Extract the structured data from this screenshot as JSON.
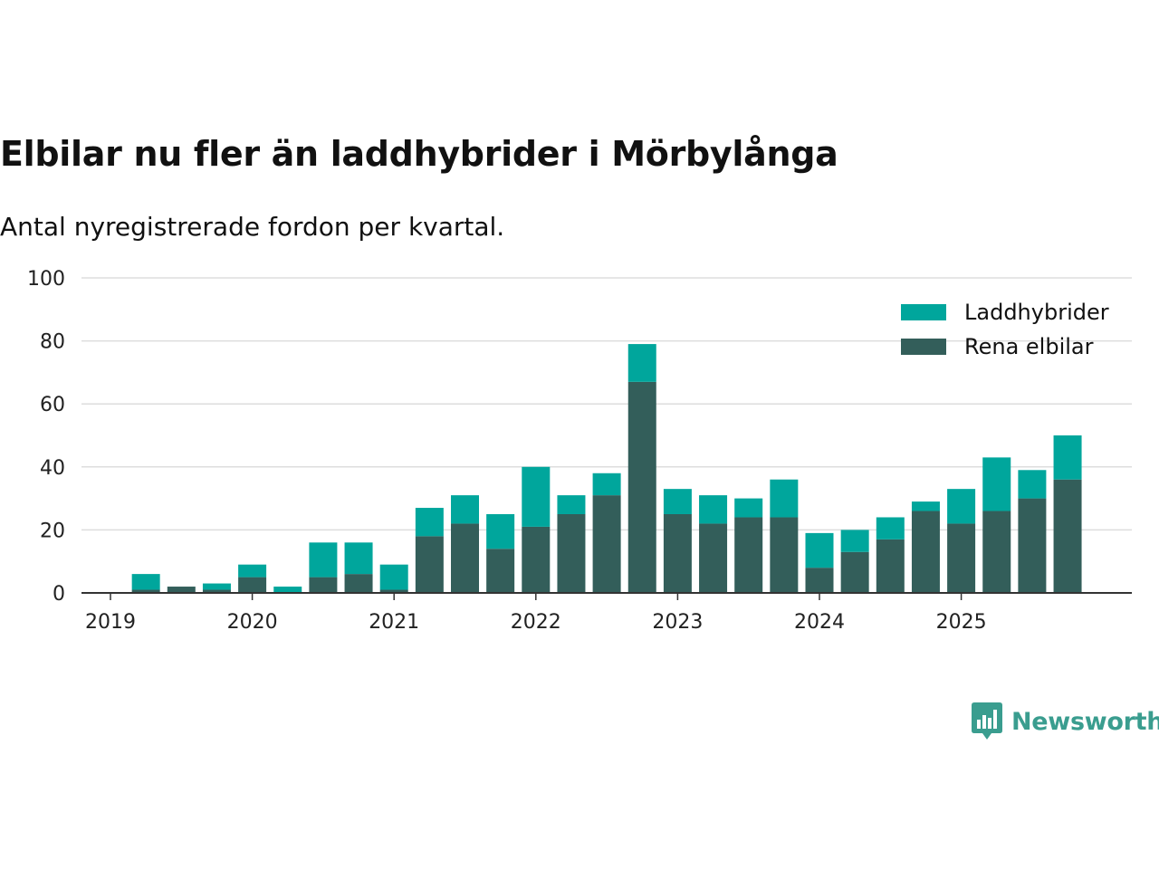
{
  "header": {
    "title": "Elbilar nu fler än laddhybrider i Mörbylånga",
    "subtitle": "Antal nyregistrerade fordon per kvartal."
  },
  "brand": {
    "name": "Newsworthy",
    "logo_icon": "chart-bubble-icon",
    "color": "#3a9d8f"
  },
  "colors": {
    "laddhybrider": "#00a69c",
    "rena_elbilar": "#335e5a",
    "grid": "#dddddd",
    "axis": "#333333"
  },
  "chart_data": {
    "type": "bar",
    "stacked": true,
    "title": "Elbilar nu fler än laddhybrider i Mörbylånga",
    "subtitle": "Antal nyregistrerade fordon per kvartal.",
    "xlabel": "",
    "ylabel": "",
    "ylim": [
      0,
      100
    ],
    "yticks": [
      0,
      20,
      40,
      60,
      80,
      100
    ],
    "year_ticks": [
      "2019",
      "2020",
      "2021",
      "2022",
      "2023",
      "2024",
      "2025"
    ],
    "legend_position": "top-right",
    "grid": true,
    "categories": [
      "2019 Q1",
      "2019 Q2",
      "2019 Q3",
      "2019 Q4",
      "2020 Q1",
      "2020 Q2",
      "2020 Q3",
      "2020 Q4",
      "2021 Q1",
      "2021 Q2",
      "2021 Q3",
      "2021 Q4",
      "2022 Q1",
      "2022 Q2",
      "2022 Q3",
      "2022 Q4",
      "2023 Q1",
      "2023 Q2",
      "2023 Q3",
      "2023 Q4",
      "2024 Q1",
      "2024 Q2",
      "2024 Q3",
      "2024 Q4",
      "2025 Q1",
      "2025 Q2",
      "2025 Q3",
      "2025 Q4"
    ],
    "series": [
      {
        "name": "Rena elbilar",
        "key": "rena_elbilar",
        "values": [
          0,
          1,
          2,
          1,
          5,
          0,
          5,
          6,
          1,
          18,
          22,
          14,
          21,
          25,
          31,
          67,
          25,
          22,
          24,
          24,
          8,
          13,
          17,
          26,
          22,
          26,
          30,
          36
        ]
      },
      {
        "name": "Laddhybrider",
        "key": "laddhybrider",
        "values": [
          0,
          5,
          0,
          2,
          4,
          2,
          11,
          10,
          8,
          9,
          9,
          11,
          19,
          6,
          7,
          12,
          8,
          9,
          6,
          12,
          11,
          7,
          7,
          3,
          11,
          17,
          9,
          14
        ]
      }
    ]
  }
}
